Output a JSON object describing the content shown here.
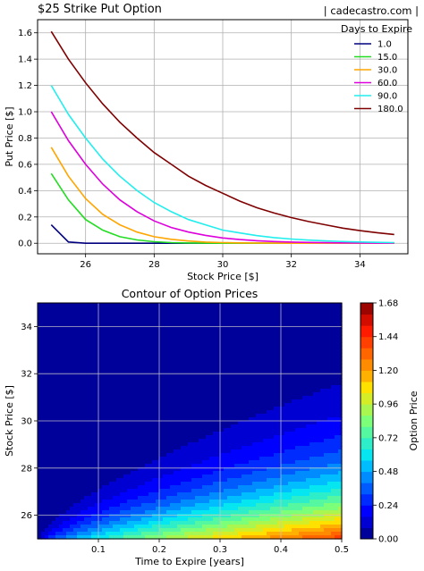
{
  "header": {
    "title": "$25 Strike Put Option",
    "credit": "| cadecastro.com |"
  },
  "chart_data": [
    {
      "type": "line",
      "title": "",
      "xlabel": "Stock Price [$]",
      "ylabel": "Put Price [$]",
      "xlim": [
        24.6,
        35.4
      ],
      "ylim": [
        -0.08,
        1.7
      ],
      "xticks": [
        26,
        28,
        30,
        32,
        34
      ],
      "yticks": [
        0.0,
        0.2,
        0.4,
        0.6,
        0.8,
        1.0,
        1.2,
        1.4,
        1.6
      ],
      "grid": true,
      "legend": {
        "title": "Days to Expire",
        "placement": "top-right"
      },
      "x": [
        25.0,
        25.5,
        26.0,
        26.5,
        27.0,
        27.5,
        28.0,
        28.5,
        29.0,
        29.5,
        30.0,
        30.5,
        31.0,
        31.5,
        32.0,
        32.5,
        33.0,
        33.5,
        34.0,
        34.5,
        35.0
      ],
      "series": [
        {
          "name": "1.0",
          "color": "#00007f",
          "values": [
            0.14,
            0.01,
            0.0,
            0.0,
            0.0,
            0.0,
            0.0,
            0.0,
            0.0,
            0.0,
            0.0,
            0.0,
            0.0,
            0.0,
            0.0,
            0.0,
            0.0,
            0.0,
            0.0,
            0.0,
            0.0
          ]
        },
        {
          "name": "15.0",
          "color": "#22dd22",
          "values": [
            0.53,
            0.33,
            0.18,
            0.1,
            0.05,
            0.025,
            0.012,
            0.005,
            0.002,
            0.001,
            0.0,
            0.0,
            0.0,
            0.0,
            0.0,
            0.0,
            0.0,
            0.0,
            0.0,
            0.0,
            0.0
          ]
        },
        {
          "name": "30.0",
          "color": "#ffa500",
          "values": [
            0.73,
            0.51,
            0.34,
            0.22,
            0.14,
            0.085,
            0.05,
            0.03,
            0.017,
            0.009,
            0.005,
            0.003,
            0.002,
            0.001,
            0.0,
            0.0,
            0.0,
            0.0,
            0.0,
            0.0,
            0.0
          ]
        },
        {
          "name": "60.0",
          "color": "#dd00dd",
          "values": [
            1.0,
            0.78,
            0.6,
            0.45,
            0.33,
            0.24,
            0.17,
            0.12,
            0.085,
            0.06,
            0.04,
            0.028,
            0.019,
            0.013,
            0.009,
            0.006,
            0.004,
            0.003,
            0.002,
            0.001,
            0.001
          ]
        },
        {
          "name": "90.0",
          "color": "#22eeee",
          "values": [
            1.2,
            0.98,
            0.8,
            0.64,
            0.51,
            0.4,
            0.31,
            0.24,
            0.18,
            0.14,
            0.1,
            0.078,
            0.058,
            0.043,
            0.032,
            0.024,
            0.018,
            0.013,
            0.01,
            0.007,
            0.005
          ]
        },
        {
          "name": "180.0",
          "color": "#7f0000",
          "values": [
            1.61,
            1.4,
            1.22,
            1.06,
            0.92,
            0.8,
            0.69,
            0.6,
            0.51,
            0.44,
            0.38,
            0.32,
            0.27,
            0.23,
            0.195,
            0.165,
            0.14,
            0.115,
            0.096,
            0.08,
            0.067
          ]
        }
      ]
    },
    {
      "type": "heatmap",
      "title": "Contour of Option Prices",
      "xlabel": "Time to Expire [years]",
      "ylabel": "Stock Price [$]",
      "xlim": [
        0.0,
        0.5
      ],
      "ylim": [
        25.0,
        35.0
      ],
      "xticks": [
        "0.1",
        "0.2",
        "0.3",
        "0.4",
        "0.5"
      ],
      "yticks": [
        "26",
        "28",
        "30",
        "32",
        "34"
      ],
      "grid": true,
      "strike": 25,
      "colormap": "jet",
      "colorbar": {
        "label": "Option Price",
        "min": 0.0,
        "max": 1.68,
        "ticks": [
          "0.00",
          "0.24",
          "0.48",
          "0.72",
          "0.96",
          "1.20",
          "1.44",
          "1.68"
        ]
      }
    }
  ]
}
